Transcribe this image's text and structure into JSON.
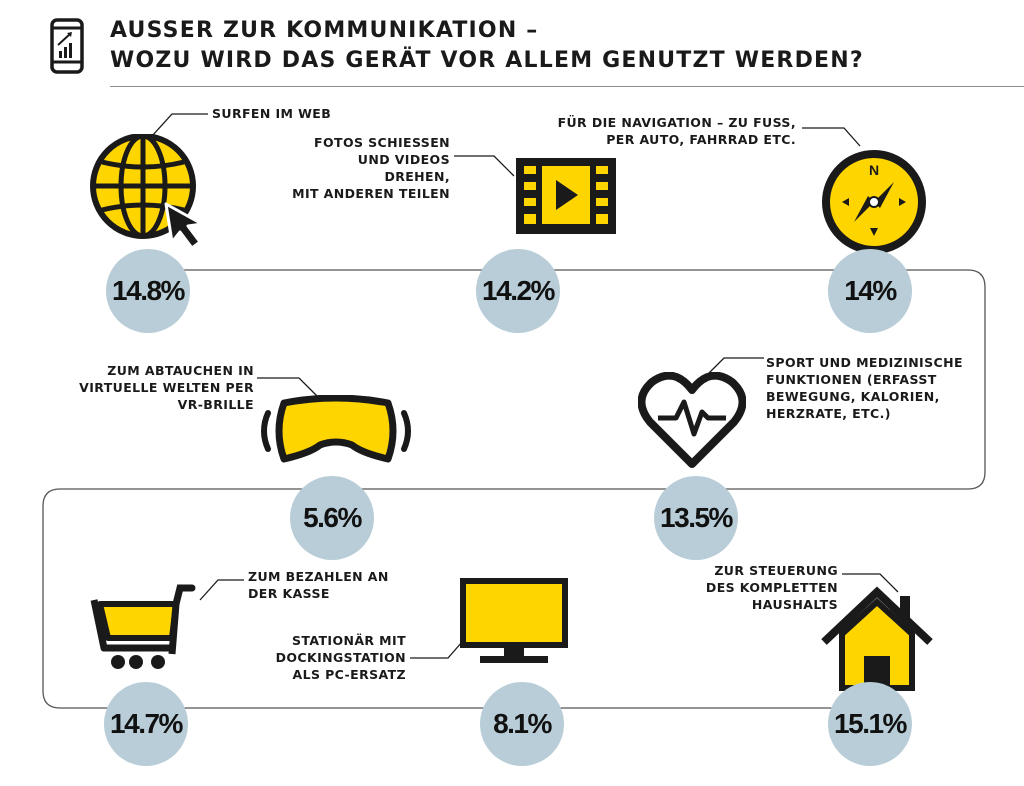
{
  "header": {
    "title_line_1": "AUSSER ZUR KOMMUNIKATION –",
    "title_line_2": "WOZU WIRD DAS GERÄT VOR ALLEM GENUTZT WERDEN?"
  },
  "colors": {
    "accent_yellow": "#FFD500",
    "bubble_blue": "#B8CDD7",
    "ink": "#1A1A1A",
    "connector_line": "#555555"
  },
  "chart_data": {
    "type": "bar",
    "title": "AUSSER ZUR KOMMUNIKATION – WOZU WIRD DAS GERÄT VOR ALLEM GENUTZT WERDEN?",
    "unit": "%",
    "categories": [
      "SURFEN IM WEB",
      "FOTOS SCHIESSEN UND VIDEOS DREHEN, MIT ANDEREN TEILEN",
      "FÜR DIE NAVIGATION – ZU FUSS, PER AUTO, FAHRRAD ETC.",
      "ZUM ABTAUCHEN IN VIRTUELLE WELTEN PER VR-BRILLE",
      "SPORT UND MEDIZINISCHE FUNKTIONEN (ERFASST BEWEGUNG, KALORIEN, HERZRATE, ETC.)",
      "ZUM BEZAHLEN AN DER KASSE",
      "STATIONÄR MIT DOCKINGSTATION ALS PC-ERSATZ",
      "ZUR STEUERUNG DES KOMPLETTEN HAUSHALTS"
    ],
    "values": [
      14.8,
      14.2,
      14.0,
      5.6,
      13.5,
      14.7,
      8.1,
      15.1
    ]
  },
  "items": [
    {
      "label": "SURFEN IM WEB",
      "value_text": "14.8%",
      "icon": "globe-cursor-icon"
    },
    {
      "label": "FOTOS SCHIESSEN\nUND VIDEOS DREHEN,\nMIT ANDEREN TEILEN",
      "value_text": "14.2%",
      "icon": "video-film-icon"
    },
    {
      "label": "FÜR DIE NAVIGATION – ZU FUSS,\nPER AUTO, FAHRRAD ETC.",
      "value_text": "14%",
      "icon": "compass-icon",
      "compass_letter": "N"
    },
    {
      "label": "ZUM ABTAUCHEN IN\nVIRTUELLE WELTEN PER\nVR-BRILLE",
      "value_text": "5.6%",
      "icon": "vr-headset-icon"
    },
    {
      "label": "SPORT UND MEDIZINISCHE\nFUNKTIONEN (ERFASST\nBEWEGUNG, KALORIEN,\nHERZRATE, ETC.)",
      "value_text": "13.5%",
      "icon": "heart-pulse-icon"
    },
    {
      "label": "ZUM BEZAHLEN AN\nDER KASSE",
      "value_text": "14.7%",
      "icon": "shopping-cart-icon"
    },
    {
      "label": "STATIONÄR MIT\nDOCKINGSTATION\nALS PC-ERSATZ",
      "value_text": "8.1%",
      "icon": "monitor-icon"
    },
    {
      "label": "ZUR STEUERUNG\nDES KOMPLETTEN\nHAUSHALTS",
      "value_text": "15.1%",
      "icon": "house-icon"
    }
  ]
}
